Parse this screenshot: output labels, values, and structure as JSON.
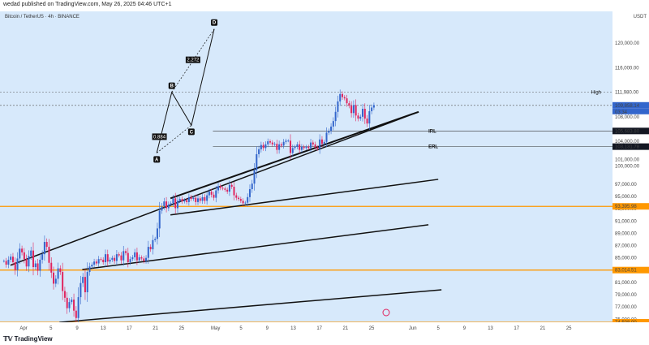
{
  "header": {
    "publisher_line": "wedad published on TradingView.com, May 26, 2025 04:46 UTC+1",
    "symbol_line": "Bitcoin / TetherUS · 4h · BINANCE",
    "currency": "USDT"
  },
  "footer": {
    "logo_text": "TradingView"
  },
  "colors": {
    "background": "#d7e9fb",
    "candle_up": "#3366cc",
    "candle_down": "#e0245e",
    "trendline": "#111111",
    "support_line": "#ff9800",
    "pattern": "#111111"
  },
  "chart_data": {
    "type": "candlestick",
    "title": "Bitcoin / TetherUS · 4h · BINANCE",
    "ylim": [
      74500,
      124500
    ],
    "y_ticks": [
      "120,000.00",
      "116,000.00",
      "111,980.00",
      "108,000.00",
      "104,000.00",
      "101,000.00",
      "100,000.00",
      "97,000.00",
      "95,000.00",
      "93,000.00",
      "91,000.00",
      "89,000.00",
      "87,000.00",
      "85,000.00",
      "83,000.00",
      "81,000.00",
      "79,000.00",
      "77,000.00",
      "75,000.00"
    ],
    "y_tick_values": [
      120000,
      116000,
      111980,
      108000,
      104000,
      101000,
      100000,
      97000,
      95000,
      93000,
      91000,
      89000,
      87000,
      85000,
      83000,
      81000,
      79000,
      77000,
      75000
    ],
    "x_ticks": [
      "Apr",
      "5",
      "9",
      "13",
      "17",
      "21",
      "25",
      "May",
      "5",
      "9",
      "13",
      "17",
      "21",
      "25",
      "Jun",
      "5",
      "9",
      "13",
      "17",
      "21",
      "25"
    ],
    "price_labels": [
      {
        "label": "High",
        "value": 111980
      },
      {
        "label": "",
        "value": 109858.14
      },
      {
        "label": "",
        "value": 105683.8
      },
      {
        "label": "",
        "value": 103131.78
      },
      {
        "label": "",
        "value": 93395.98
      },
      {
        "label": "",
        "value": 83014.51
      },
      {
        "label": "",
        "value": 74508.0
      }
    ],
    "price_label_text": [
      "High",
      "109,858.14",
      "105,683.80",
      "103,131.78",
      "93,395.98",
      "83,014.51",
      "74,508.00"
    ],
    "small_price_label": "03:34",
    "level_annotations": [
      {
        "text": "IRL",
        "value": 105683.8
      },
      {
        "text": "ERL",
        "value": 103131.78
      }
    ],
    "horizontal_levels": [
      93395.98,
      83014.51,
      74508.0
    ],
    "pattern_points": [
      {
        "label": "A",
        "day": 20.4,
        "value": 102100
      },
      {
        "label": "B",
        "day": 22.7,
        "value": 112000
      },
      {
        "label": "C",
        "day": 25.7,
        "value": 106600
      },
      {
        "label": "D",
        "day": 29.2,
        "value": 122300
      }
    ],
    "pattern_ratios": [
      {
        "text": "0.884"
      },
      {
        "text": "2.272"
      }
    ],
    "trendlines": [
      {
        "from": [
          5.5,
          74500
        ],
        "to": [
          64,
          79800
        ]
      },
      {
        "from": [
          9,
          83100
        ],
        "to": [
          62,
          90400
        ]
      },
      {
        "from": [
          22.5,
          92000
        ],
        "to": [
          63.5,
          97800
        ]
      },
      {
        "from": [
          22.5,
          94700
        ],
        "to": [
          60.5,
          108800
        ]
      },
      {
        "from": [
          -2,
          83800
        ],
        "to": [
          60.5,
          108800
        ]
      }
    ],
    "candles_close": [
      84500,
      83900,
      84700,
      85200,
      84300,
      83000,
      84900,
      86500,
      85900,
      84800,
      83600,
      85300,
      86200,
      83500,
      84100,
      82900,
      84700,
      85600,
      87600,
      86800,
      84200,
      82600,
      80800,
      81600,
      83300,
      82700,
      79600,
      78500,
      76800,
      77800,
      78200,
      76400,
      75200,
      78600,
      80900,
      81900,
      79400,
      82700,
      83600,
      83900,
      84400,
      84100,
      84800,
      84700,
      84300,
      85600,
      84400,
      84700,
      85000,
      84500,
      85600,
      85400,
      84600,
      86100,
      85800,
      84300,
      84800,
      85100,
      85900,
      84600,
      85100,
      84900,
      84500,
      85000,
      86800,
      86400,
      87900,
      88100,
      89800,
      92700,
      93400,
      94200,
      93100,
      93700,
      93900,
      94700,
      93100,
      94300,
      94600,
      94200,
      94400,
      94100,
      94900,
      94600,
      94800,
      94100,
      94700,
      94300,
      94900,
      94300,
      95200,
      95800,
      95300,
      94800,
      96000,
      96700,
      96400,
      96300,
      96100,
      95800,
      96900,
      96600,
      95200,
      94800,
      94600,
      94300,
      93900,
      94000,
      94900,
      96200,
      97100,
      99300,
      101900,
      102700,
      103400,
      102900,
      103500,
      104000,
      103800,
      103500,
      103600,
      102600,
      103500,
      103300,
      103900,
      104100,
      104100,
      102100,
      102900,
      103100,
      103500,
      102600,
      103100,
      102900,
      103100,
      102900,
      103800,
      103500,
      103000,
      102800,
      104300,
      103600,
      103900,
      105400,
      105700,
      106400,
      107300,
      108800,
      110500,
      111700,
      111200,
      111000,
      110200,
      109800,
      108600,
      109900,
      108200,
      107700,
      108000,
      109300,
      107700,
      106900,
      108900,
      109500,
      109900
    ],
    "grid": false,
    "legend": "none"
  }
}
